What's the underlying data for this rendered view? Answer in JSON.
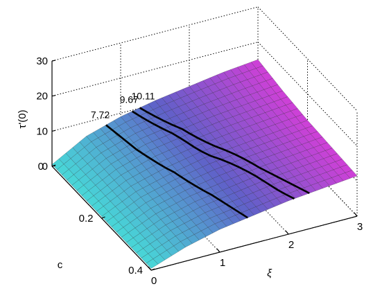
{
  "chart_data": {
    "type": "surface",
    "xlabel": "ξ",
    "ylabel": "c",
    "zlabel": "τ'(0)",
    "xlim": [
      0,
      3
    ],
    "ylim": [
      0,
      0.4
    ],
    "zlim": [
      0,
      30
    ],
    "x_ticks": [
      "0",
      "1",
      "2",
      "3"
    ],
    "y_ticks": [
      "0",
      "0.2",
      "0.4"
    ],
    "z_ticks": [
      "0",
      "10",
      "20",
      "30"
    ],
    "grid": true,
    "colormap": [
      "#48d8d8",
      "#6060c8",
      "#d040d8"
    ],
    "surface_z_grid": {
      "xi": [
        0,
        0.5,
        1,
        1.5,
        2,
        2.5,
        3
      ],
      "c": [
        0,
        0.1,
        0.2,
        0.3,
        0.4
      ],
      "z": [
        [
          0.5,
          6.0,
          9.0,
          11.0,
          12.5,
          14.0,
          15.0
        ],
        [
          0.5,
          5.5,
          8.5,
          10.0,
          11.5,
          12.5,
          13.5
        ],
        [
          0.5,
          5.0,
          7.5,
          9.5,
          10.5,
          11.5,
          12.5
        ],
        [
          0.5,
          4.5,
          7.0,
          8.5,
          10.0,
          11.0,
          12.0
        ],
        [
          0.5,
          4.0,
          6.5,
          8.0,
          9.5,
          10.5,
          11.5
        ]
      ]
    },
    "contours": [
      {
        "label": "7.72",
        "level": 7.72
      },
      {
        "label": "9.67",
        "level": 9.67
      },
      {
        "label": "10.11",
        "level": 10.11
      }
    ]
  }
}
